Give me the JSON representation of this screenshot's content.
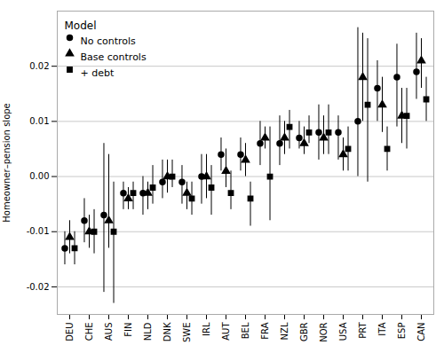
{
  "chart_data": {
    "type": "errorbar",
    "ylabel": "Homeowner–pension slope",
    "categories": [
      "DEU",
      "CHE",
      "AUS",
      "FIN",
      "NLD",
      "DNK",
      "SWE",
      "IRL",
      "AUT",
      "BEL",
      "FRA",
      "NZL",
      "GBR",
      "NOR",
      "USA",
      "PRT",
      "ITA",
      "ESP",
      "CAN"
    ],
    "series": [
      {
        "name": "No controls",
        "marker": "circle",
        "values": [
          -0.013,
          -0.008,
          -0.007,
          -0.003,
          -0.003,
          -0.001,
          -0.001,
          0.0,
          0.004,
          0.004,
          0.006,
          0.006,
          0.007,
          0.008,
          0.008,
          0.01,
          0.016,
          0.018,
          0.019
        ],
        "ci_lower": [
          -0.016,
          -0.012,
          -0.021,
          -0.006,
          -0.007,
          -0.004,
          -0.005,
          -0.005,
          0.001,
          0.001,
          0.002,
          0.002,
          0.005,
          0.003,
          0.003,
          0.0,
          0.01,
          0.009,
          0.014
        ],
        "ci_upper": [
          -0.01,
          -0.004,
          0.006,
          -0.001,
          0.0,
          0.003,
          0.002,
          0.004,
          0.007,
          0.007,
          0.01,
          0.011,
          0.01,
          0.013,
          0.011,
          0.027,
          0.021,
          0.024,
          0.026
        ]
      },
      {
        "name": "Base controls",
        "marker": "triangle",
        "values": [
          -0.011,
          -0.01,
          -0.008,
          -0.004,
          -0.003,
          0.0,
          -0.003,
          0.0,
          0.001,
          0.003,
          0.007,
          0.007,
          0.006,
          0.007,
          0.004,
          0.018,
          0.013,
          0.011,
          0.021
        ],
        "ci_lower": [
          -0.014,
          -0.013,
          -0.013,
          -0.006,
          -0.006,
          -0.003,
          -0.006,
          -0.004,
          -0.002,
          0.0,
          0.005,
          0.004,
          0.004,
          0.004,
          0.001,
          0.01,
          0.008,
          0.006,
          0.016
        ],
        "ci_upper": [
          -0.008,
          -0.007,
          0.004,
          -0.002,
          -0.001,
          0.003,
          -0.001,
          0.004,
          0.005,
          0.006,
          0.009,
          0.01,
          0.009,
          0.011,
          0.007,
          0.026,
          0.018,
          0.016,
          0.025
        ]
      },
      {
        "name": "+ debt",
        "marker": "square",
        "values": [
          -0.013,
          -0.01,
          -0.01,
          -0.003,
          -0.002,
          0.0,
          -0.004,
          -0.002,
          -0.003,
          -0.004,
          0.0,
          0.009,
          0.008,
          0.008,
          0.005,
          0.013,
          0.005,
          0.011,
          0.014
        ],
        "ci_lower": [
          -0.016,
          -0.014,
          -0.023,
          -0.006,
          -0.005,
          -0.002,
          -0.007,
          -0.007,
          -0.006,
          -0.009,
          -0.008,
          0.005,
          0.006,
          0.004,
          0.001,
          -0.001,
          0.001,
          0.005,
          0.01
        ],
        "ci_upper": [
          -0.01,
          -0.006,
          -0.001,
          -0.001,
          0.002,
          0.003,
          -0.001,
          0.002,
          0.001,
          -0.001,
          0.009,
          0.012,
          0.011,
          0.013,
          0.009,
          0.025,
          0.009,
          0.016,
          0.018
        ]
      }
    ],
    "color": "black",
    "ylim": [
      -0.025,
      0.03
    ],
    "yticks": [
      -0.02,
      -0.01,
      {
        "value": 0,
        "label": "0.00"
      },
      0.01,
      0.02
    ],
    "grid": "y",
    "legend": "upper left",
    "legend_title": "Model"
  }
}
